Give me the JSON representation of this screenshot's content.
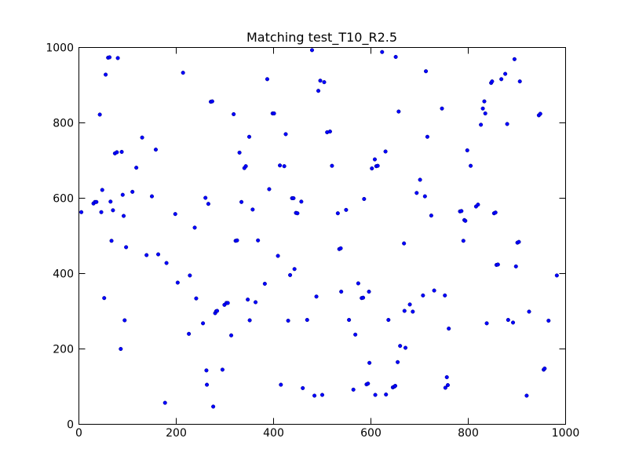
{
  "chart_data": {
    "type": "scatter",
    "title": "Matching test_T10_R2.5",
    "xlabel": "",
    "ylabel": "",
    "xlim": [
      0,
      1000
    ],
    "ylim": [
      0,
      1000
    ],
    "xticks": [
      0,
      200,
      400,
      600,
      800,
      1000
    ],
    "yticks": [
      0,
      200,
      400,
      600,
      800,
      1000
    ],
    "grid": false,
    "marker_color": "#0000ff",
    "series": [
      {
        "points": [
          [
            5,
            563
          ],
          [
            30,
            586
          ],
          [
            33,
            590
          ],
          [
            36,
            590
          ],
          [
            43,
            822
          ],
          [
            46,
            563
          ],
          [
            48,
            622
          ],
          [
            52,
            335
          ],
          [
            55,
            928
          ],
          [
            60,
            973
          ],
          [
            63,
            974
          ],
          [
            65,
            591
          ],
          [
            67,
            487
          ],
          [
            70,
            568
          ],
          [
            74,
            719
          ],
          [
            78,
            722
          ],
          [
            80,
            972
          ],
          [
            86,
            200
          ],
          [
            88,
            723
          ],
          [
            90,
            609
          ],
          [
            92,
            553
          ],
          [
            94,
            276
          ],
          [
            97,
            470
          ],
          [
            110,
            617
          ],
          [
            118,
            681
          ],
          [
            130,
            761
          ],
          [
            139,
            449
          ],
          [
            150,
            605
          ],
          [
            158,
            729
          ],
          [
            163,
            451
          ],
          [
            177,
            57
          ],
          [
            180,
            428
          ],
          [
            198,
            558
          ],
          [
            203,
            376
          ],
          [
            214,
            933
          ],
          [
            226,
            240
          ],
          [
            228,
            395
          ],
          [
            238,
            522
          ],
          [
            241,
            334
          ],
          [
            255,
            268
          ],
          [
            260,
            601
          ],
          [
            262,
            143
          ],
          [
            263,
            105
          ],
          [
            266,
            585
          ],
          [
            271,
            856
          ],
          [
            274,
            857
          ],
          [
            276,
            47
          ],
          [
            280,
            295
          ],
          [
            282,
            300
          ],
          [
            284,
            301
          ],
          [
            295,
            145
          ],
          [
            299,
            317
          ],
          [
            303,
            322
          ],
          [
            306,
            322
          ],
          [
            313,
            236
          ],
          [
            318,
            823
          ],
          [
            322,
            487
          ],
          [
            325,
            488
          ],
          [
            330,
            721
          ],
          [
            334,
            590
          ],
          [
            340,
            680
          ],
          [
            343,
            685
          ],
          [
            347,
            331
          ],
          [
            350,
            763
          ],
          [
            351,
            276
          ],
          [
            357,
            570
          ],
          [
            363,
            324
          ],
          [
            368,
            488
          ],
          [
            382,
            373
          ],
          [
            387,
            916
          ],
          [
            391,
            624
          ],
          [
            398,
            825
          ],
          [
            401,
            825
          ],
          [
            409,
            447
          ],
          [
            413,
            687
          ],
          [
            415,
            105
          ],
          [
            422,
            685
          ],
          [
            425,
            770
          ],
          [
            430,
            275
          ],
          [
            434,
            396
          ],
          [
            438,
            600
          ],
          [
            441,
            600
          ],
          [
            443,
            412
          ],
          [
            446,
            561
          ],
          [
            449,
            560
          ],
          [
            457,
            591
          ],
          [
            460,
            96
          ],
          [
            469,
            277
          ],
          [
            479,
            993
          ],
          [
            484,
            76
          ],
          [
            488,
            339
          ],
          [
            492,
            885
          ],
          [
            496,
            912
          ],
          [
            500,
            78
          ],
          [
            504,
            908
          ],
          [
            510,
            775
          ],
          [
            516,
            777
          ],
          [
            520,
            686
          ],
          [
            532,
            560
          ],
          [
            535,
            465
          ],
          [
            538,
            467
          ],
          [
            539,
            352
          ],
          [
            549,
            569
          ],
          [
            555,
            277
          ],
          [
            564,
            92
          ],
          [
            568,
            238
          ],
          [
            574,
            374
          ],
          [
            581,
            335
          ],
          [
            584,
            336
          ],
          [
            586,
            598
          ],
          [
            591,
            106
          ],
          [
            594,
            108
          ],
          [
            596,
            352
          ],
          [
            597,
            163
          ],
          [
            602,
            679
          ],
          [
            608,
            703
          ],
          [
            609,
            78
          ],
          [
            611,
            685
          ],
          [
            614,
            686
          ],
          [
            623,
            988
          ],
          [
            630,
            724
          ],
          [
            631,
            79
          ],
          [
            636,
            277
          ],
          [
            645,
            98
          ],
          [
            648,
            100
          ],
          [
            650,
            102
          ],
          [
            651,
            975
          ],
          [
            655,
            165
          ],
          [
            657,
            830
          ],
          [
            660,
            208
          ],
          [
            668,
            480
          ],
          [
            669,
            301
          ],
          [
            671,
            203
          ],
          [
            680,
            318
          ],
          [
            686,
            299
          ],
          [
            694,
            614
          ],
          [
            701,
            649
          ],
          [
            707,
            342
          ],
          [
            711,
            605
          ],
          [
            713,
            937
          ],
          [
            716,
            763
          ],
          [
            724,
            554
          ],
          [
            730,
            355
          ],
          [
            746,
            838
          ],
          [
            752,
            342
          ],
          [
            753,
            97
          ],
          [
            756,
            125
          ],
          [
            758,
            104
          ],
          [
            760,
            254
          ],
          [
            783,
            565
          ],
          [
            786,
            566
          ],
          [
            790,
            487
          ],
          [
            792,
            542
          ],
          [
            794,
            540
          ],
          [
            798,
            727
          ],
          [
            805,
            686
          ],
          [
            816,
            578
          ],
          [
            820,
            583
          ],
          [
            826,
            795
          ],
          [
            830,
            838
          ],
          [
            833,
            857
          ],
          [
            835,
            825
          ],
          [
            838,
            268
          ],
          [
            847,
            906
          ],
          [
            849,
            910
          ],
          [
            853,
            560
          ],
          [
            856,
            562
          ],
          [
            858,
            423
          ],
          [
            861,
            424
          ],
          [
            868,
            916
          ],
          [
            876,
            930
          ],
          [
            880,
            797
          ],
          [
            882,
            277
          ],
          [
            892,
            270
          ],
          [
            895,
            969
          ],
          [
            898,
            419
          ],
          [
            901,
            482
          ],
          [
            904,
            484
          ],
          [
            906,
            910
          ],
          [
            920,
            76
          ],
          [
            925,
            299
          ],
          [
            945,
            820
          ],
          [
            948,
            824
          ],
          [
            955,
            145
          ],
          [
            957,
            148
          ],
          [
            965,
            275
          ],
          [
            982,
            395
          ]
        ]
      }
    ]
  }
}
